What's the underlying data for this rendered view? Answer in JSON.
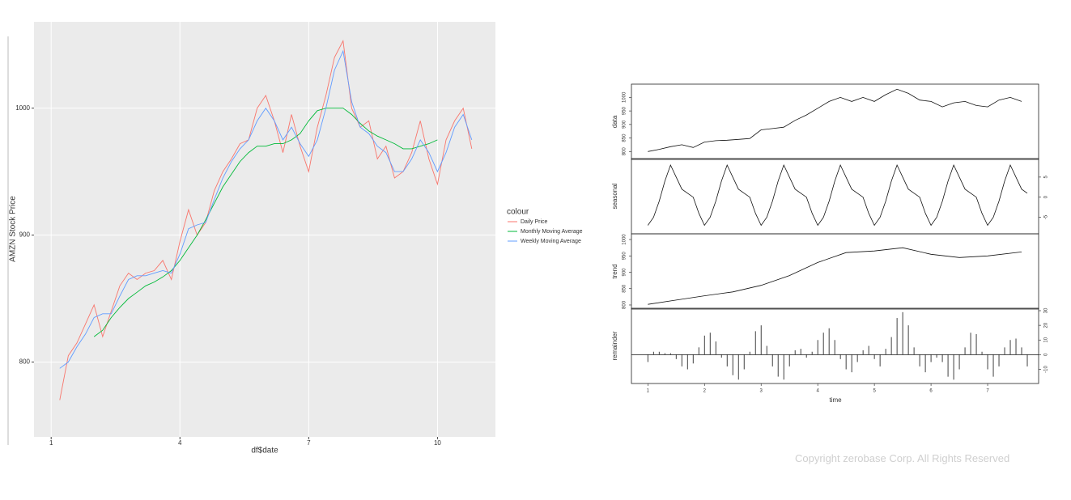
{
  "chart_data": [
    {
      "type": "line",
      "xlabel": "df$date",
      "ylabel": "AMZN Stock Price",
      "legend_title": "colour",
      "xlim": [
        0.6,
        11.35
      ],
      "xticks": [
        1,
        4,
        7,
        10
      ],
      "ylim": [
        741,
        1068
      ],
      "yticks": [
        800,
        900,
        1000
      ],
      "grid": true,
      "legend": "right",
      "x": [
        1.2,
        1.4,
        1.6,
        1.8,
        2.0,
        2.2,
        2.4,
        2.6,
        2.8,
        3.0,
        3.2,
        3.4,
        3.6,
        3.8,
        4.0,
        4.2,
        4.4,
        4.6,
        4.8,
        5.0,
        5.2,
        5.4,
        5.6,
        5.8,
        6.0,
        6.2,
        6.4,
        6.6,
        6.8,
        7.0,
        7.2,
        7.4,
        7.6,
        7.8,
        8.0,
        8.2,
        8.4,
        8.6,
        8.8,
        9.0,
        9.2,
        9.4,
        9.6,
        9.8,
        10.0,
        10.2,
        10.4,
        10.6,
        10.8
      ],
      "series": [
        {
          "name": "Daily Price",
          "color": "#f8766d",
          "values": [
            770,
            805,
            815,
            830,
            845,
            820,
            840,
            860,
            870,
            865,
            870,
            872,
            880,
            865,
            895,
            920,
            900,
            910,
            935,
            950,
            960,
            972,
            975,
            1000,
            1010,
            990,
            965,
            995,
            970,
            950,
            985,
            1010,
            1040,
            1053,
            1000,
            985,
            990,
            960,
            970,
            945,
            950,
            965,
            990,
            960,
            940,
            975,
            990,
            1000,
            968
          ]
        },
        {
          "name": "Monthly Moving Average",
          "color": "#00ba38",
          "values": [
            null,
            null,
            null,
            null,
            820,
            825,
            835,
            843,
            850,
            855,
            860,
            863,
            867,
            872,
            880,
            890,
            900,
            912,
            925,
            938,
            948,
            958,
            965,
            970,
            970,
            972,
            972,
            975,
            980,
            990,
            998,
            1000,
            1000,
            1000,
            995,
            988,
            982,
            978,
            975,
            972,
            968,
            968,
            970,
            972,
            975,
            null,
            null,
            null,
            null
          ]
        },
        {
          "name": "Weekly Moving Average",
          "color": "#619cff",
          "values": [
            795,
            800,
            812,
            822,
            835,
            838,
            838,
            852,
            865,
            868,
            868,
            870,
            872,
            870,
            885,
            905,
            908,
            910,
            928,
            945,
            958,
            968,
            975,
            990,
            1000,
            990,
            975,
            985,
            972,
            962,
            975,
            1000,
            1030,
            1045,
            1005,
            985,
            980,
            970,
            965,
            950,
            950,
            960,
            975,
            965,
            950,
            965,
            985,
            995,
            975
          ]
        }
      ]
    },
    {
      "type": "decomposition",
      "xlabel": "time",
      "xlim": [
        0.71,
        7.9
      ],
      "xticks": [
        1,
        2,
        3,
        4,
        5,
        6,
        7
      ],
      "panels": [
        {
          "type": "line",
          "ylabel": "data",
          "ytick_side": "left",
          "ylim": [
            780,
            1040
          ],
          "yticks": [
            800,
            850,
            900,
            950,
            1000
          ],
          "x": [
            1.0,
            1.2,
            1.4,
            1.6,
            1.8,
            2.0,
            2.2,
            2.4,
            2.6,
            2.8,
            3.0,
            3.2,
            3.4,
            3.6,
            3.8,
            4.0,
            4.2,
            4.4,
            4.6,
            4.8,
            5.0,
            5.2,
            5.4,
            5.6,
            5.8,
            6.0,
            6.2,
            6.4,
            6.6,
            6.8,
            7.0,
            7.2,
            7.4,
            7.6
          ],
          "values": [
            800,
            808,
            818,
            825,
            815,
            835,
            840,
            842,
            845,
            848,
            880,
            885,
            890,
            915,
            935,
            960,
            985,
            1000,
            985,
            1000,
            985,
            1010,
            1030,
            1015,
            990,
            985,
            965,
            980,
            985,
            970,
            965,
            990,
            1000,
            985
          ]
        },
        {
          "type": "line",
          "ylabel": "seasonal",
          "ytick_side": "right",
          "ylim": [
            -8.5,
            9
          ],
          "yticks": [
            -5,
            0,
            5
          ],
          "x": [
            1.0,
            1.1,
            1.2,
            1.3,
            1.4,
            1.5,
            1.6,
            1.7,
            1.8,
            1.9,
            2.0,
            2.1,
            2.2,
            2.3,
            2.4,
            2.5,
            2.6,
            2.7,
            2.8,
            2.9,
            3.0,
            3.1,
            3.2,
            3.3,
            3.4,
            3.5,
            3.6,
            3.7,
            3.8,
            3.9,
            4.0,
            4.1,
            4.2,
            4.3,
            4.4,
            4.5,
            4.6,
            4.7,
            4.8,
            4.9,
            5.0,
            5.1,
            5.2,
            5.3,
            5.4,
            5.5,
            5.6,
            5.7,
            5.8,
            5.9,
            6.0,
            6.1,
            6.2,
            6.3,
            6.4,
            6.5,
            6.6,
            6.7,
            6.8,
            6.9,
            7.0,
            7.1,
            7.2,
            7.3,
            7.4,
            7.5,
            7.6,
            7.7
          ],
          "values": [
            -7,
            -5,
            -1,
            4,
            8,
            5,
            2,
            1,
            0,
            -4,
            -7,
            -5,
            -1,
            4,
            8,
            5,
            2,
            1,
            0,
            -4,
            -7,
            -5,
            -1,
            4,
            8,
            5,
            2,
            1,
            0,
            -4,
            -7,
            -5,
            -1,
            4,
            8,
            5,
            2,
            1,
            0,
            -4,
            -7,
            -5,
            -1,
            4,
            8,
            5,
            2,
            1,
            0,
            -4,
            -7,
            -5,
            -1,
            4,
            8,
            5,
            2,
            1,
            0,
            -4,
            -7,
            -5,
            -1,
            4,
            8,
            5,
            2,
            1
          ]
        },
        {
          "type": "line",
          "ylabel": "trend",
          "ytick_side": "left",
          "ylim": [
            795,
            1010
          ],
          "yticks": [
            800,
            850,
            900,
            950,
            1000
          ],
          "x": [
            1,
            1.5,
            2,
            2.5,
            3,
            3.5,
            4,
            4.5,
            5,
            5.5,
            6,
            6.5,
            7,
            7.6
          ],
          "values": [
            802,
            815,
            828,
            840,
            860,
            890,
            930,
            960,
            965,
            975,
            955,
            945,
            950,
            962
          ]
        },
        {
          "type": "bar",
          "ylabel": "remainder",
          "ytick_side": "right",
          "ylim": [
            -18,
            30
          ],
          "yticks": [
            -10,
            0,
            10,
            20,
            30
          ],
          "x": [
            1.0,
            1.1,
            1.2,
            1.3,
            1.4,
            1.5,
            1.6,
            1.7,
            1.8,
            1.9,
            2.0,
            2.1,
            2.2,
            2.3,
            2.4,
            2.5,
            2.6,
            2.7,
            2.8,
            2.9,
            3.0,
            3.1,
            3.2,
            3.3,
            3.4,
            3.5,
            3.6,
            3.7,
            3.8,
            3.9,
            4.0,
            4.1,
            4.2,
            4.3,
            4.4,
            4.5,
            4.6,
            4.7,
            4.8,
            4.9,
            5.0,
            5.1,
            5.2,
            5.3,
            5.4,
            5.5,
            5.6,
            5.7,
            5.8,
            5.9,
            6.0,
            6.1,
            6.2,
            6.3,
            6.4,
            6.5,
            6.6,
            6.7,
            6.8,
            6.9,
            7.0,
            7.1,
            7.2,
            7.3,
            7.4,
            7.5,
            7.6,
            7.7
          ],
          "values": [
            -5,
            2,
            2,
            1,
            1,
            -3,
            -8,
            -10,
            -6,
            5,
            13,
            15,
            9,
            -2,
            -8,
            -14,
            -17,
            -10,
            2,
            16,
            20,
            6,
            -8,
            -15,
            -17,
            -8,
            3,
            4,
            -2,
            2,
            10,
            15,
            18,
            10,
            -3,
            -10,
            -12,
            -5,
            3,
            6,
            -3,
            -8,
            4,
            12,
            25,
            29,
            20,
            5,
            -8,
            -12,
            -5,
            -2,
            -5,
            -15,
            -17,
            -10,
            5,
            15,
            14,
            2,
            -10,
            -15,
            -8,
            5,
            10,
            11,
            5,
            -8
          ]
        }
      ]
    }
  ],
  "footer": "Copyright zerobase Corp. All Rights Reserved"
}
